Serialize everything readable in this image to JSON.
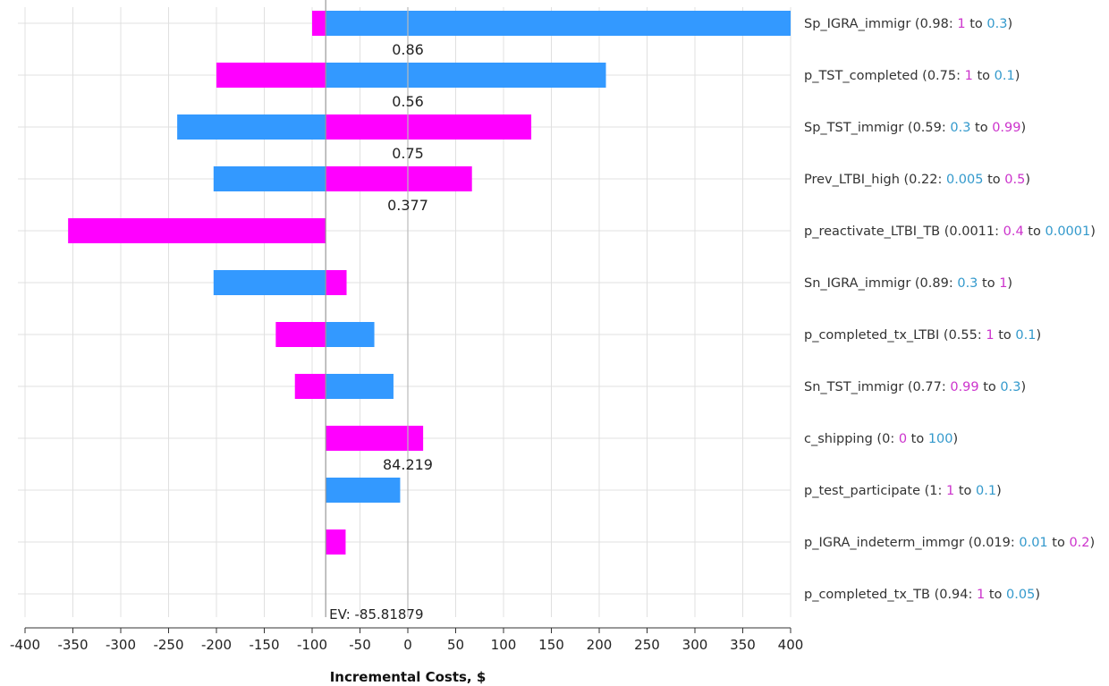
{
  "colors": {
    "low_bar": "#ff00ff",
    "high_bar": "#3399ff",
    "low_value_text": "#cc33cc",
    "high_value_text": "#3399cc",
    "grid": "#e0e0e0",
    "ev_line": "#999999",
    "zero_line": "#bbbbbb",
    "axis": "#333333"
  },
  "chart_data": {
    "type": "tornado",
    "xlabel": "Incremental Costs, $",
    "xlim": [
      -400,
      400
    ],
    "xticks": [
      -400,
      -350,
      -300,
      -250,
      -200,
      -150,
      -100,
      -50,
      0,
      50,
      100,
      150,
      200,
      250,
      300,
      350,
      400
    ],
    "ev": -85.81879,
    "ev_label": "EV: -85.81879",
    "bars": [
      {
        "name": "Sp_IGRA_immigr",
        "base": "0.98",
        "low_label": "1",
        "high_label": "0.3",
        "low_value": -100,
        "high_value": 400,
        "low_color": "low",
        "high_color": "high"
      },
      {
        "name": "p_TST_completed",
        "base": "0.75",
        "low_label": "1",
        "high_label": "0.1",
        "low_value": -200,
        "high_value": 207,
        "low_color": "low",
        "high_color": "high"
      },
      {
        "name": "Sp_TST_immigr",
        "base": "0.59",
        "low_label": "0.3",
        "high_label": "0.99",
        "low_value": -241,
        "high_value": 129,
        "low_color": "high",
        "high_color": "low"
      },
      {
        "name": "Prev_LTBI_high",
        "base": "0.22",
        "low_label": "0.005",
        "high_label": "0.5",
        "low_value": -203,
        "high_value": 67,
        "low_color": "high",
        "high_color": "low"
      },
      {
        "name": "p_reactivate_LTBI_TB",
        "base": "0.0011",
        "low_label": "0.4",
        "high_label": "0.0001",
        "low_value": -355,
        "high_value": -85.81879,
        "low_color": "low",
        "high_color": "high"
      },
      {
        "name": "Sn_IGRA_immigr",
        "base": "0.89",
        "low_label": "0.3",
        "high_label": "1",
        "low_value": -203,
        "high_value": -64,
        "low_color": "high",
        "high_color": "low"
      },
      {
        "name": "p_completed_tx_LTBI",
        "base": "0.55",
        "low_label": "1",
        "high_label": "0.1",
        "low_value": -138,
        "high_value": -35,
        "low_color": "low",
        "high_color": "high"
      },
      {
        "name": "Sn_TST_immigr",
        "base": "0.77",
        "low_label": "0.99",
        "high_label": "0.3",
        "low_value": -118,
        "high_value": -15,
        "low_color": "low",
        "high_color": "high"
      },
      {
        "name": "c_shipping",
        "base": "0",
        "low_label": "0",
        "high_label": "100",
        "low_value": 16,
        "high_value": -85.81879,
        "low_color": "low",
        "high_color": "high"
      },
      {
        "name": "p_test_participate",
        "base": "1",
        "low_label": "1",
        "high_label": "0.1",
        "low_value": -85.81879,
        "high_value": -8,
        "low_color": "low",
        "high_color": "high"
      },
      {
        "name": "p_IGRA_indeterm_immgr",
        "base": "0.019",
        "low_label": "0.01",
        "high_label": "0.2",
        "low_value": -85.81879,
        "high_value": -65,
        "low_color": "high",
        "high_color": "low"
      },
      {
        "name": "p_completed_tx_TB",
        "base": "0.94",
        "low_label": "1",
        "high_label": "0.05",
        "low_value": -85.81879,
        "high_value": -85.81879,
        "low_color": "low",
        "high_color": "high"
      }
    ],
    "threshold_labels": [
      {
        "text": "0.86",
        "row": 0.5,
        "x": 0
      },
      {
        "text": "0.56",
        "row": 1.5,
        "x": 0
      },
      {
        "text": "0.75",
        "row": 2.5,
        "x": 0
      },
      {
        "text": "0.377",
        "row": 3.5,
        "x": 0
      },
      {
        "text": "84.219",
        "row": 8.5,
        "x": 0
      }
    ]
  }
}
